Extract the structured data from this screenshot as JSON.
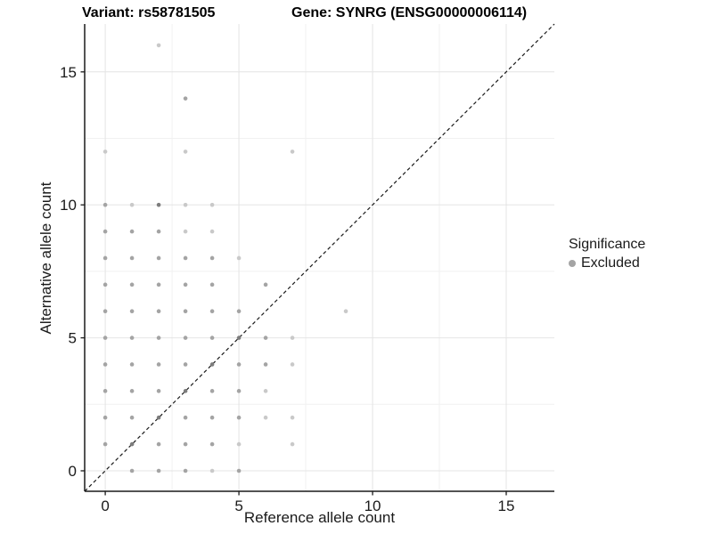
{
  "chart_data": {
    "type": "scatter",
    "title_left": "Variant: rs58781505",
    "title_right": "Gene: SYNRG (ENSG00000006114)",
    "xlabel": "Reference allele count",
    "ylabel": "Alternative allele count",
    "xlim": [
      -0.77,
      16.8
    ],
    "ylim": [
      -0.77,
      16.8
    ],
    "xticks": [
      0,
      5,
      10,
      15
    ],
    "yticks": [
      0,
      5,
      10,
      15
    ],
    "minor_xticks": [
      2.5,
      7.5,
      12.5
    ],
    "minor_yticks": [
      2.5,
      7.5,
      12.5
    ],
    "grid": true,
    "legend": {
      "title": "Significance",
      "entries": [
        "Excluded"
      ],
      "position": "right"
    },
    "identity_line": {
      "style": "dashed",
      "slope": 1,
      "intercept": 0
    },
    "point_colors": {
      "l": "#c9c9c9",
      "m": "#a4a4a4",
      "d": "#7d7d7d"
    },
    "colors": {
      "grid_major": "#e4e4e4",
      "grid_minor": "#f1f1f1",
      "axis": "#1a1a1a",
      "line": "#1a1a1a"
    },
    "series": [
      {
        "name": "Excluded",
        "points": [
          [
            2,
            16,
            "l"
          ],
          [
            3,
            14,
            "m"
          ],
          [
            0,
            12,
            "l"
          ],
          [
            3,
            12,
            "l"
          ],
          [
            7,
            12,
            "l"
          ],
          [
            0,
            10,
            "m"
          ],
          [
            1,
            10,
            "l"
          ],
          [
            2,
            10,
            "d"
          ],
          [
            3,
            10,
            "l"
          ],
          [
            4,
            10,
            "l"
          ],
          [
            0,
            9,
            "m"
          ],
          [
            1,
            9,
            "m"
          ],
          [
            2,
            9,
            "m"
          ],
          [
            3,
            9,
            "l"
          ],
          [
            4,
            9,
            "l"
          ],
          [
            0,
            8,
            "m"
          ],
          [
            1,
            8,
            "m"
          ],
          [
            2,
            8,
            "m"
          ],
          [
            3,
            8,
            "m"
          ],
          [
            4,
            8,
            "m"
          ],
          [
            5,
            8,
            "l"
          ],
          [
            0,
            7,
            "m"
          ],
          [
            1,
            7,
            "m"
          ],
          [
            2,
            7,
            "m"
          ],
          [
            3,
            7,
            "m"
          ],
          [
            4,
            7,
            "m"
          ],
          [
            6,
            7,
            "m"
          ],
          [
            0,
            6,
            "m"
          ],
          [
            1,
            6,
            "m"
          ],
          [
            2,
            6,
            "m"
          ],
          [
            3,
            6,
            "m"
          ],
          [
            4,
            6,
            "m"
          ],
          [
            5,
            6,
            "m"
          ],
          [
            9,
            6,
            "l"
          ],
          [
            0,
            5,
            "m"
          ],
          [
            1,
            5,
            "m"
          ],
          [
            2,
            5,
            "m"
          ],
          [
            3,
            5,
            "m"
          ],
          [
            4,
            5,
            "m"
          ],
          [
            5,
            5,
            "d"
          ],
          [
            6,
            5,
            "m"
          ],
          [
            7,
            5,
            "l"
          ],
          [
            0,
            4,
            "m"
          ],
          [
            1,
            4,
            "m"
          ],
          [
            2,
            4,
            "m"
          ],
          [
            3,
            4,
            "m"
          ],
          [
            4,
            4,
            "d"
          ],
          [
            5,
            4,
            "m"
          ],
          [
            6,
            4,
            "m"
          ],
          [
            7,
            4,
            "l"
          ],
          [
            0,
            3,
            "m"
          ],
          [
            1,
            3,
            "m"
          ],
          [
            2,
            3,
            "m"
          ],
          [
            3,
            3,
            "d"
          ],
          [
            4,
            3,
            "m"
          ],
          [
            5,
            3,
            "m"
          ],
          [
            6,
            3,
            "l"
          ],
          [
            0,
            2,
            "m"
          ],
          [
            1,
            2,
            "m"
          ],
          [
            2,
            2,
            "d"
          ],
          [
            3,
            2,
            "m"
          ],
          [
            4,
            2,
            "m"
          ],
          [
            5,
            2,
            "m"
          ],
          [
            6,
            2,
            "l"
          ],
          [
            7,
            2,
            "l"
          ],
          [
            0,
            1,
            "m"
          ],
          [
            1,
            1,
            "d"
          ],
          [
            2,
            1,
            "m"
          ],
          [
            3,
            1,
            "m"
          ],
          [
            4,
            1,
            "m"
          ],
          [
            5,
            1,
            "l"
          ],
          [
            7,
            1,
            "l"
          ],
          [
            1,
            0,
            "m"
          ],
          [
            2,
            0,
            "m"
          ],
          [
            3,
            0,
            "m"
          ],
          [
            4,
            0,
            "l"
          ],
          [
            5,
            0,
            "m"
          ]
        ]
      }
    ]
  }
}
